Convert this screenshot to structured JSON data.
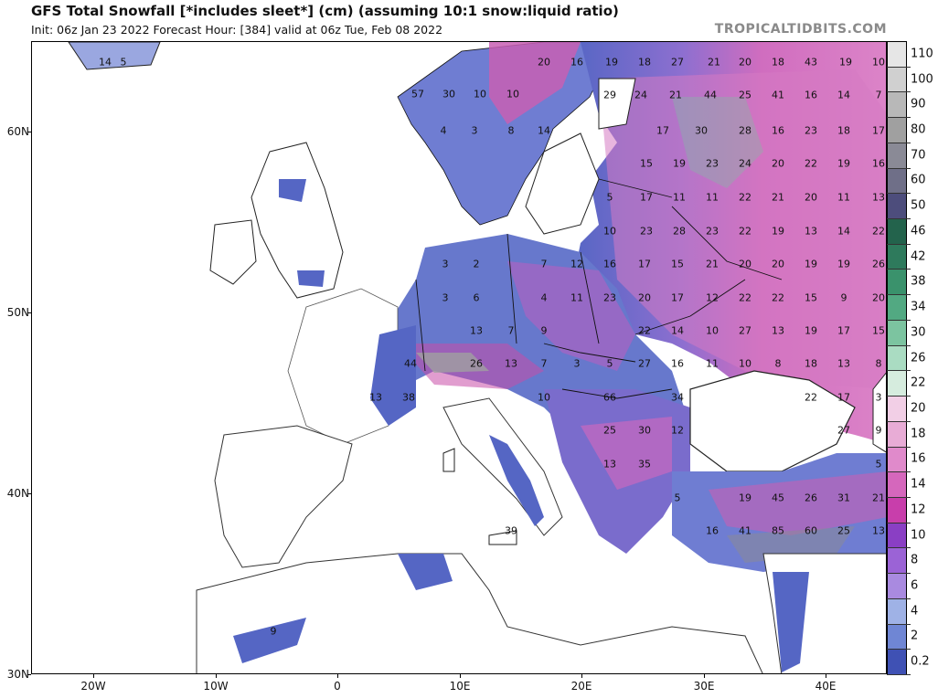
{
  "header": {
    "title": "GFS Total Snowfall [*includes sleet*] (cm) (assuming 10:1 snow:liquid ratio)",
    "subtitle": "Init: 06z Jan 23 2022   Forecast Hour: [384]   valid at 06z Tue, Feb 08 2022",
    "brand": "TROPICALTIDBITS.COM"
  },
  "axes": {
    "lat_labels": [
      "60N",
      "50N",
      "40N",
      "30N"
    ],
    "lon_labels": [
      "20W",
      "10W",
      "0",
      "10E",
      "20E",
      "30E",
      "40E"
    ]
  },
  "legend": {
    "levels": [
      {
        "label": "110",
        "color": "#e6e6e6"
      },
      {
        "label": "100",
        "color": "#d0d0d0"
      },
      {
        "label": "90",
        "color": "#b8b8b8"
      },
      {
        "label": "80",
        "color": "#a0a0a0"
      },
      {
        "label": "70",
        "color": "#8a8a96"
      },
      {
        "label": "60",
        "color": "#6f6f88"
      },
      {
        "label": "50",
        "color": "#4d4d7c"
      },
      {
        "label": "46",
        "color": "#23634c"
      },
      {
        "label": "42",
        "color": "#2e7a5c"
      },
      {
        "label": "38",
        "color": "#3a926c"
      },
      {
        "label": "34",
        "color": "#52a982"
      },
      {
        "label": "30",
        "color": "#7cc4a0"
      },
      {
        "label": "26",
        "color": "#aadcc2"
      },
      {
        "label": "22",
        "color": "#d6ecde"
      },
      {
        "label": "20",
        "color": "#f2cfe6"
      },
      {
        "label": "18",
        "color": "#e8acd6"
      },
      {
        "label": "16",
        "color": "#e08acb"
      },
      {
        "label": "14",
        "color": "#d567bc"
      },
      {
        "label": "12",
        "color": "#c83eab"
      },
      {
        "label": "10",
        "color": "#8a3fc4"
      },
      {
        "label": "8",
        "color": "#9b63d6"
      },
      {
        "label": "6",
        "color": "#a98ae0"
      },
      {
        "label": "4",
        "color": "#9fb2e6"
      },
      {
        "label": "2",
        "color": "#6f86d4"
      },
      {
        "label": "0.2",
        "color": "#3f51b4"
      }
    ]
  },
  "map_values": [
    "14",
    "5",
    "20",
    "16",
    "19",
    "18",
    "27",
    "21",
    "20",
    "18",
    "43",
    "19",
    "10",
    "57",
    "30",
    "10",
    "10",
    "29",
    "24",
    "21",
    "44",
    "25",
    "41",
    "16",
    "14",
    "7",
    "4",
    "3",
    "8",
    "14",
    "17",
    "30",
    "28",
    "16",
    "23",
    "18",
    "17",
    "15",
    "19",
    "23",
    "24",
    "20",
    "22",
    "19",
    "16",
    "5",
    "17",
    "11",
    "11",
    "22",
    "21",
    "20",
    "11",
    "13",
    "10",
    "23",
    "28",
    "23",
    "22",
    "19",
    "13",
    "14",
    "22",
    "3",
    "2",
    "7",
    "12",
    "16",
    "17",
    "15",
    "21",
    "20",
    "20",
    "19",
    "19",
    "26",
    "3",
    "6",
    "4",
    "11",
    "23",
    "20",
    "17",
    "12",
    "22",
    "22",
    "15",
    "9",
    "20",
    "13",
    "7",
    "9",
    "22",
    "14",
    "10",
    "27",
    "13",
    "19",
    "17",
    "15",
    "44",
    "26",
    "13",
    "7",
    "3",
    "5",
    "27",
    "16",
    "11",
    "10",
    "8",
    "18",
    "13",
    "8",
    "13",
    "38",
    "10",
    "66",
    "34",
    "22",
    "17",
    "3",
    "25",
    "30",
    "12",
    "27",
    "9",
    "13",
    "35",
    "5",
    "5",
    "19",
    "45",
    "26",
    "31",
    "21",
    "39",
    "16",
    "41",
    "85",
    "60",
    "25",
    "13",
    "9"
  ]
}
